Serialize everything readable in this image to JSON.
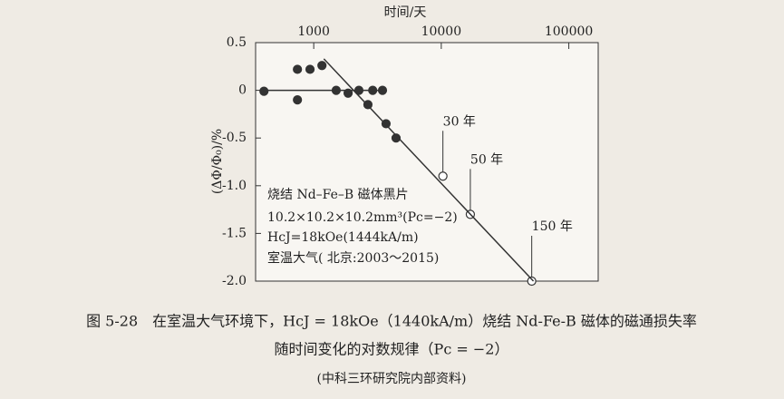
{
  "chart_data": {
    "type": "scatter",
    "x_label": "时间/天",
    "y_label": "(ΔΦ/Φ₀)/%",
    "log_x": true,
    "xlim": [
      350,
      170000
    ],
    "ylim": [
      -2,
      0.5
    ],
    "xticks": [
      1000,
      10000,
      100000
    ],
    "yticks": [
      0.5,
      0,
      -0.5,
      {
        "value": -1,
        "label": "-1.0"
      },
      -1.5,
      {
        "value": -2,
        "label": "-2.0"
      }
    ],
    "series": [
      {
        "marker": "filled",
        "color": "#333333",
        "x": [
          407,
          745,
          935,
          1160,
          745,
          1500,
          1860,
          2260,
          2660,
          2900,
          3460,
          3690,
          4420
        ],
        "y": [
          -0.01,
          0.22,
          0.22,
          0.26,
          -0.1,
          0.0,
          -0.03,
          0.0,
          -0.15,
          0.0,
          0.0,
          -0.35,
          -0.5
        ]
      },
      {
        "marker": "open",
        "color": "#333333",
        "x": [
          10300,
          16900,
          51200
        ],
        "y": [
          -0.9,
          -1.3,
          -2.0
        ],
        "point_labels": [
          "30 年",
          "50 年",
          "150 年"
        ]
      },
      {
        "marker": "line",
        "color": "#333333",
        "x": [
          400,
          3500
        ],
        "y": [
          0,
          0
        ]
      },
      {
        "marker": "line",
        "color": "#333333",
        "x": [
          1200,
          52800
        ],
        "y": [
          0.33,
          -2.0
        ]
      }
    ],
    "note": [
      "烧结 Nd–Fe–B 磁体黑片",
      "10.2×10.2×10.2mm³(Pc=−2)",
      "HcJ=18kOe(1444kA/m)",
      "室温大气( 北京:2003～2015)"
    ]
  },
  "caption": [
    "图 5-28　在室温大气环境下，HcJ = 18kOe（1440kA/m）烧结 Nd-Fe-B 磁体的磁通损失率",
    "随时间变化的对数规律（Pc = −2）",
    "(中科三环研究院内部资料)"
  ]
}
